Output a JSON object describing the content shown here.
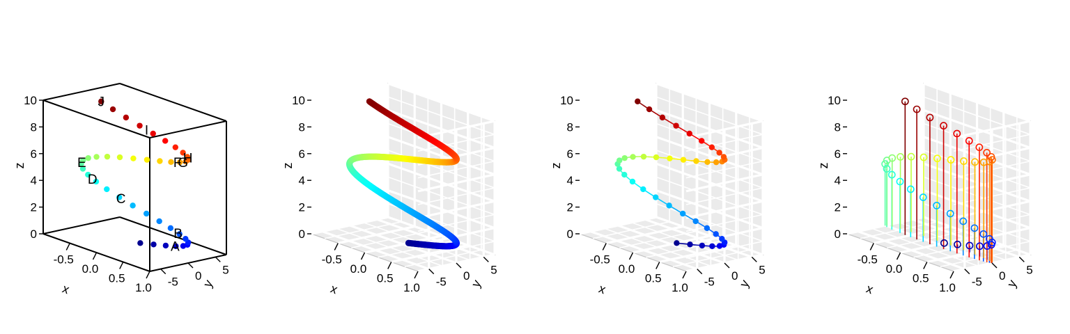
{
  "colors": {
    "pane": "#ebebeb",
    "pane_edge": "#c4c4c4",
    "grid": "#ffffff",
    "box": "#000000",
    "jet": [
      "#00008F",
      "#0000FF",
      "#0080FF",
      "#00FFFF",
      "#80FF80",
      "#FFFF00",
      "#FF8000",
      "#FF0000",
      "#800000"
    ]
  },
  "chart_data": {
    "type": "scatter3d",
    "description_of_curve": "helix x = sin(t), y = cos(t), z = t, points coloured by z using a jet palette",
    "curve": {
      "t_range": [
        0,
        10
      ],
      "x": "sin(t)",
      "y": "cos(t)",
      "z": "t"
    },
    "axes": {
      "x": {
        "label": "x",
        "ticks": [
          "-0.5",
          "0.0",
          "0.5",
          "1.0"
        ],
        "range": [
          -1,
          1
        ]
      },
      "y": {
        "label": "y",
        "ticks": [
          "-5",
          "0",
          "5"
        ],
        "range": [
          -7,
          7
        ]
      },
      "z": {
        "label": "z",
        "ticks": [
          "0",
          "2",
          "4",
          "6",
          "8",
          "10"
        ],
        "range": [
          0,
          10
        ]
      }
    },
    "panels": [
      {
        "style": "points",
        "box": "box",
        "n_points": 40,
        "labels": [
          {
            "text": "A",
            "t": 0.75
          },
          {
            "text": "B",
            "t": 2.1
          },
          {
            "text": "C",
            "t": 3.3
          },
          {
            "text": "D",
            "t": 3.95
          },
          {
            "text": "E",
            "t": 4.75
          },
          {
            "text": "F",
            "t": 7.1
          },
          {
            "text": "G",
            "t": 7.3
          },
          {
            "text": "H",
            "t": 7.9
          },
          {
            "text": "I",
            "t": 9.1
          },
          {
            "text": "J",
            "t": 10.0
          }
        ]
      },
      {
        "style": "thick-line",
        "box": "grid",
        "n_points": 400
      },
      {
        "style": "line+points",
        "box": "grid",
        "n_points": 40
      },
      {
        "style": "hollow-points+vertical-lines",
        "box": "grid",
        "n_points": 40
      }
    ]
  }
}
